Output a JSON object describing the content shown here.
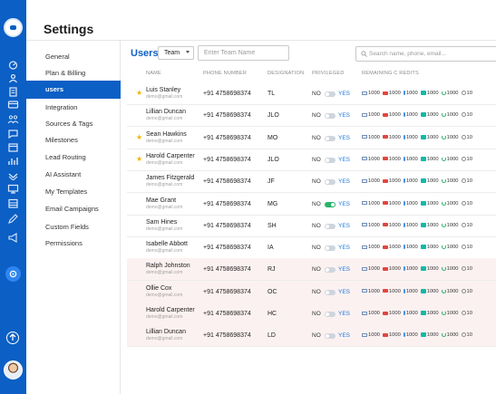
{
  "app": {
    "title": "Settings"
  },
  "rail": {
    "icons": [
      "dashboard-icon",
      "contacts-icon",
      "clipboard-icon",
      "card-icon",
      "team-icon",
      "chat-icon",
      "calendar-icon",
      "analytics-icon",
      "notification-icon",
      "monitor-icon",
      "table-icon",
      "pen-icon",
      "megaphone-icon",
      "settings-icon"
    ],
    "bottom": [
      "up-arrow-icon",
      "user-avatar"
    ]
  },
  "nav": {
    "items": [
      {
        "label": "General"
      },
      {
        "label": "Plan & Billing"
      },
      {
        "label": "users",
        "active": true
      },
      {
        "label": "Integration"
      },
      {
        "label": "Sources & Tags"
      },
      {
        "label": "Milestones"
      },
      {
        "label": "Lead Routing"
      },
      {
        "label": "AI Assistant"
      },
      {
        "label": "My Templates"
      },
      {
        "label": "Email Campaigns"
      },
      {
        "label": "Custom Fields"
      },
      {
        "label": "Permissions"
      }
    ]
  },
  "toolbar": {
    "title": "Users",
    "team_select": "Team",
    "team_name_placeholder": "Enter Team Name",
    "search_placeholder": "Search name, phone, email..."
  },
  "table": {
    "headers": {
      "name": "NAME",
      "phone": "PHONE NUMBER",
      "designation": "DESIGNATION",
      "privileged": "PRIVILEGED",
      "credits": "REMAINING C REDITS"
    },
    "no_label": "NO",
    "yes_label": "YES",
    "rows": [
      {
        "starred": true,
        "name": "Luis Stanley",
        "email": "demo@gmail.com",
        "phone": "+91 4758698374",
        "designation": "TL",
        "toggle_on": false,
        "pink": false
      },
      {
        "starred": false,
        "name": "Lillian Duncan",
        "email": "demo@gmail.com",
        "phone": "+91 4758698374",
        "designation": "JLO",
        "toggle_on": false,
        "pink": false
      },
      {
        "starred": true,
        "name": "Sean Hawkins",
        "email": "demo@gmail.com",
        "phone": "+91 4758698374",
        "designation": "MO",
        "toggle_on": false,
        "pink": false
      },
      {
        "starred": true,
        "name": "Harold Carpenter",
        "email": "demo@gmail.com",
        "phone": "+91 4758698374",
        "designation": "JLO",
        "toggle_on": false,
        "pink": false
      },
      {
        "starred": false,
        "name": "James Fitzgerald",
        "email": "demo@gmail.com",
        "phone": "+91 4758698374",
        "designation": "JF",
        "toggle_on": false,
        "pink": false
      },
      {
        "starred": false,
        "name": "Mae Grant",
        "email": "demo@gmail.com",
        "phone": "+91 4758698374",
        "designation": "MG",
        "toggle_on": true,
        "pink": false
      },
      {
        "starred": false,
        "name": "Sam Hines",
        "email": "demo@gmail.com",
        "phone": "+91 4758698374",
        "designation": "SH",
        "toggle_on": false,
        "pink": false
      },
      {
        "starred": false,
        "name": "Isabelle Abbott",
        "email": "demo@gmail.com",
        "phone": "+91 4758698374",
        "designation": "IA",
        "toggle_on": false,
        "pink": false
      },
      {
        "starred": false,
        "name": "Ralph Johnston",
        "email": "demo@gmail.com",
        "phone": "+91 4758698374",
        "designation": "RJ",
        "toggle_on": false,
        "pink": true
      },
      {
        "starred": false,
        "name": "Ollie Cox",
        "email": "demo@gmail.com",
        "phone": "+91 4758698374",
        "designation": "OC",
        "toggle_on": false,
        "pink": true
      },
      {
        "starred": false,
        "name": "Harold Carpenter",
        "email": "demo@gmail.com",
        "phone": "+91 4758698374",
        "designation": "HC",
        "toggle_on": false,
        "pink": true
      },
      {
        "starred": false,
        "name": "Lillian Duncan",
        "email": "demo@gmail.com",
        "phone": "+91 4758698374",
        "designation": "LD",
        "toggle_on": false,
        "pink": true
      }
    ],
    "credits": [
      {
        "icon": "mail-icon",
        "value": "1000"
      },
      {
        "icon": "message-icon",
        "value": "1000"
      },
      {
        "icon": "mic-icon",
        "value": "1000"
      },
      {
        "icon": "whatsapp-icon",
        "value": "1000"
      },
      {
        "icon": "phone-icon",
        "value": "1000"
      },
      {
        "icon": "settings-icon",
        "value": "10"
      }
    ]
  },
  "colors": {
    "brand": "#0b5fc5",
    "star": "#f4b400",
    "yes": "#1e7be0",
    "toggle_on": "#27b36a",
    "pink_row": "#fcf1f1"
  }
}
